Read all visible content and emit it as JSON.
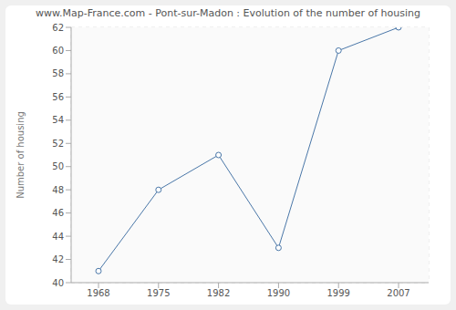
{
  "chart_data": {
    "type": "line",
    "title": "www.Map-France.com - Pont-sur-Madon : Evolution of the number of housing",
    "y_label": "Number of housing",
    "categories": [
      "1968",
      "1975",
      "1982",
      "1990",
      "1999",
      "2007"
    ],
    "values": [
      41,
      48,
      51,
      43,
      60,
      62
    ],
    "color": "#4a77a8",
    "ylim": [
      40,
      62
    ],
    "yticks": [
      40,
      42,
      44,
      46,
      48,
      50,
      52,
      54,
      56,
      58,
      60,
      62
    ],
    "grid": true,
    "marker": "circle"
  }
}
